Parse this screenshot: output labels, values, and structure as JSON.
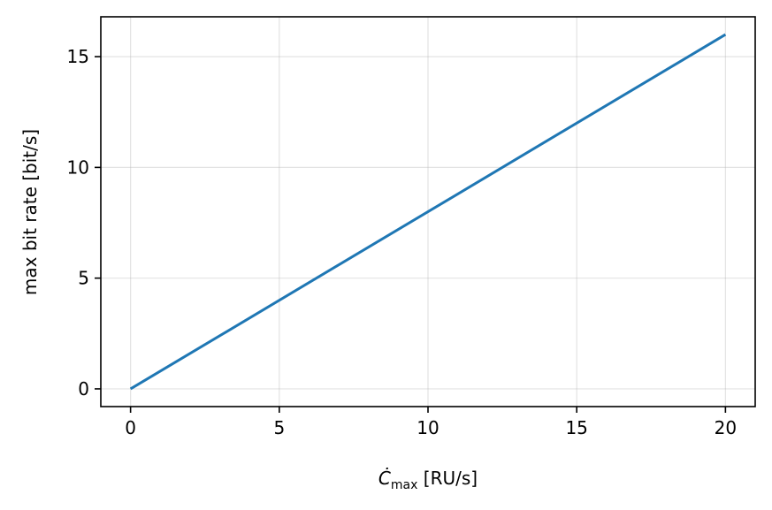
{
  "chart_data": {
    "type": "line",
    "title": "",
    "xlabel_main": "Ċ",
    "xlabel_sub": "max",
    "xlabel_unit": " [RU/s]",
    "ylabel": "max bit rate [bit/s]",
    "xlim": [
      -1,
      21
    ],
    "ylim": [
      -0.8,
      16.8
    ],
    "xticks": [
      0,
      5,
      10,
      15,
      20
    ],
    "yticks": [
      0,
      5,
      10,
      15
    ],
    "grid": true,
    "series": [
      {
        "x": [
          0,
          20
        ],
        "y": [
          0,
          16
        ],
        "color": "#1f77b4"
      }
    ]
  }
}
